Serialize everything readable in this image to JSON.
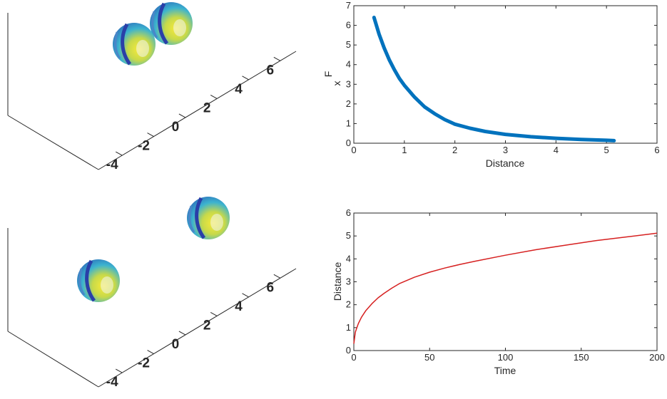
{
  "colors": {
    "force_curve": "#0072bd",
    "distance_curve": "#d62020",
    "axis": "#262626",
    "sphere_light": "#f5e640",
    "sphere_mid": "#3cb3cf",
    "sphere_dark": "#2a3fa8"
  },
  "scene_top": {
    "tick_labels": [
      "-4",
      "-2",
      "0",
      "2",
      "4",
      "6"
    ]
  },
  "scene_bottom": {
    "tick_labels": [
      "-4",
      "-2",
      "0",
      "2",
      "4",
      "6"
    ]
  },
  "chart_data": [
    {
      "type": "line",
      "xlabel": "Distance",
      "ylabel_main": "F",
      "ylabel_sub": "x",
      "xlim": [
        0,
        6
      ],
      "ylim": [
        0,
        7
      ],
      "xticks": [
        "0",
        "1",
        "2",
        "3",
        "4",
        "5",
        "6"
      ],
      "yticks": [
        "0",
        "1",
        "2",
        "3",
        "4",
        "5",
        "6",
        "7"
      ],
      "grid": false,
      "series": [
        {
          "x": [
            0.4,
            0.5,
            0.6,
            0.7,
            0.8,
            0.9,
            1.0,
            1.2,
            1.4,
            1.6,
            1.8,
            2.0,
            2.3,
            2.6,
            3.0,
            3.5,
            4.0,
            4.5,
            5.0,
            5.15
          ],
          "y": [
            6.4,
            5.55,
            4.85,
            4.25,
            3.75,
            3.3,
            2.95,
            2.35,
            1.85,
            1.5,
            1.2,
            0.97,
            0.76,
            0.6,
            0.45,
            0.33,
            0.25,
            0.19,
            0.15,
            0.13
          ]
        }
      ]
    },
    {
      "type": "line",
      "xlabel": "Time",
      "ylabel": "Distance",
      "xlim": [
        0,
        200
      ],
      "ylim": [
        0,
        6
      ],
      "xticks": [
        "0",
        "50",
        "100",
        "150",
        "200"
      ],
      "yticks": [
        "0",
        "1",
        "2",
        "3",
        "4",
        "5",
        "6"
      ],
      "grid": false,
      "series": [
        {
          "x": [
            0,
            1,
            2,
            3,
            5,
            8,
            12,
            16,
            20,
            25,
            30,
            40,
            50,
            60,
            70,
            80,
            100,
            120,
            140,
            160,
            180,
            200
          ],
          "y": [
            0.3,
            0.8,
            1.0,
            1.18,
            1.45,
            1.75,
            2.05,
            2.3,
            2.5,
            2.72,
            2.92,
            3.2,
            3.42,
            3.6,
            3.76,
            3.9,
            4.16,
            4.4,
            4.6,
            4.8,
            4.96,
            5.12
          ]
        }
      ]
    }
  ]
}
